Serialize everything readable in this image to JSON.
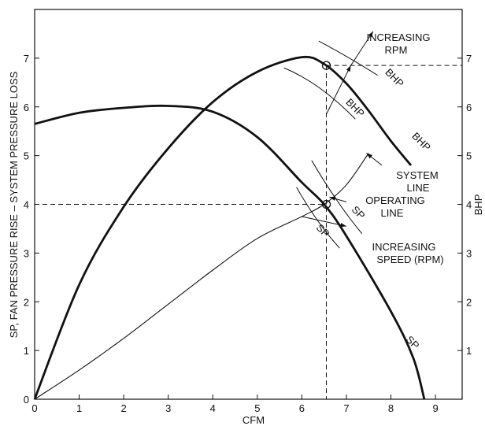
{
  "chart_data": {
    "type": "line",
    "xlabel": "CFM",
    "ylabel_left": "SP, FAN PRESSURE RISE – SYSTEM PRESSURE LOSS",
    "ylabel_right": "BHP",
    "xlim": [
      0,
      9.6
    ],
    "ylim": [
      0,
      8
    ],
    "x_ticks": [
      0,
      1,
      2,
      3,
      4,
      5,
      6,
      7,
      8,
      9
    ],
    "y_ticks": [
      0,
      1,
      2,
      3,
      4,
      5,
      6,
      7
    ],
    "y_ticks_right": [
      1,
      2,
      3,
      4,
      5,
      6,
      7
    ],
    "grid": false,
    "series": [
      {
        "id": "sp",
        "label": "SP",
        "points": [
          [
            0,
            5.65
          ],
          [
            1,
            5.88
          ],
          [
            2,
            5.98
          ],
          [
            3,
            6.02
          ],
          [
            4,
            5.9
          ],
          [
            5,
            5.38
          ],
          [
            6,
            4.45
          ],
          [
            6.5,
            4.0
          ],
          [
            7,
            3.35
          ],
          [
            8,
            1.8
          ],
          [
            8.5,
            0.85
          ],
          [
            8.75,
            0
          ]
        ]
      },
      {
        "id": "bhp",
        "label": "BHP",
        "points": [
          [
            0,
            0
          ],
          [
            1,
            2.35
          ],
          [
            2,
            3.95
          ],
          [
            3,
            5.15
          ],
          [
            4,
            6.1
          ],
          [
            5,
            6.72
          ],
          [
            6,
            7.02
          ],
          [
            6.5,
            6.88
          ],
          [
            7,
            6.48
          ],
          [
            7.5,
            5.92
          ],
          [
            8,
            5.3
          ],
          [
            8.45,
            4.8
          ]
        ]
      },
      {
        "id": "system",
        "label": "SYSTEM LINE",
        "points": [
          [
            0,
            0
          ],
          [
            1,
            0.6
          ],
          [
            2,
            1.25
          ],
          [
            3,
            1.95
          ],
          [
            4,
            2.65
          ],
          [
            5,
            3.3
          ],
          [
            6,
            3.75
          ],
          [
            6.5,
            4.0
          ],
          [
            7,
            4.4
          ],
          [
            7.5,
            5.05
          ]
        ]
      }
    ],
    "operating_point": {
      "x": 6.55,
      "y": 4.0
    },
    "bhp_point": {
      "x": 6.55,
      "y": 6.85
    },
    "annotations": {
      "increasing_rpm": [
        "INCREASING",
        "RPM"
      ],
      "system_line": [
        "SYSTEM",
        "LINE"
      ],
      "operating_line": [
        "OPERATING",
        "LINE"
      ],
      "increasing_speed": [
        "INCREASING",
        "SPEED (RPM)"
      ],
      "bhp_label_1": "BHP",
      "bhp_label_2": "BHP",
      "bhp_label_3": "BHP",
      "sp_label_1": "SP",
      "sp_label_2": "SP",
      "sp_label_3": "SP"
    }
  }
}
